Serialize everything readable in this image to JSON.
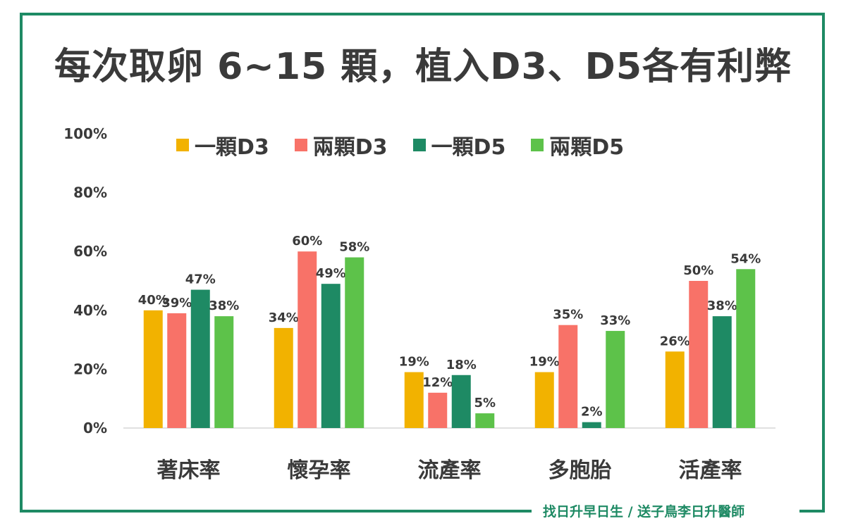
{
  "title": "每次取卵 6~15 顆，植入D3、D5各有利弊",
  "footer": "找日升早日生 / 送子鳥李日升醫師",
  "chart_data": {
    "type": "bar",
    "categories": [
      "著床率",
      "懷孕率",
      "流產率",
      "多胞胎",
      "活產率"
    ],
    "series": [
      {
        "name": "一顆D3",
        "color": "#f2b200",
        "values": [
          40,
          34,
          19,
          19,
          26
        ],
        "labels": [
          "40%",
          "34%",
          "19%",
          "19%",
          "26%"
        ]
      },
      {
        "name": "兩顆D3",
        "color": "#f87268",
        "values": [
          39,
          60,
          12,
          35,
          50
        ],
        "labels": [
          "39%",
          "60%",
          "12%",
          "35%",
          "50%"
        ]
      },
      {
        "name": "一顆D5",
        "color": "#1e8a64",
        "values": [
          47,
          49,
          18,
          2,
          38
        ],
        "labels": [
          "47%",
          "49%",
          "18%",
          "2%",
          "38%"
        ]
      },
      {
        "name": "兩顆D5",
        "color": "#5dc24a",
        "values": [
          38,
          58,
          5,
          33,
          54
        ],
        "labels": [
          "38%",
          "58%",
          "5%",
          "33%",
          "54%"
        ]
      }
    ],
    "y_ticks": [
      "0%",
      "20%",
      "40%",
      "60%",
      "80%",
      "100%"
    ],
    "ylim": [
      0,
      100
    ],
    "legend": "top"
  }
}
